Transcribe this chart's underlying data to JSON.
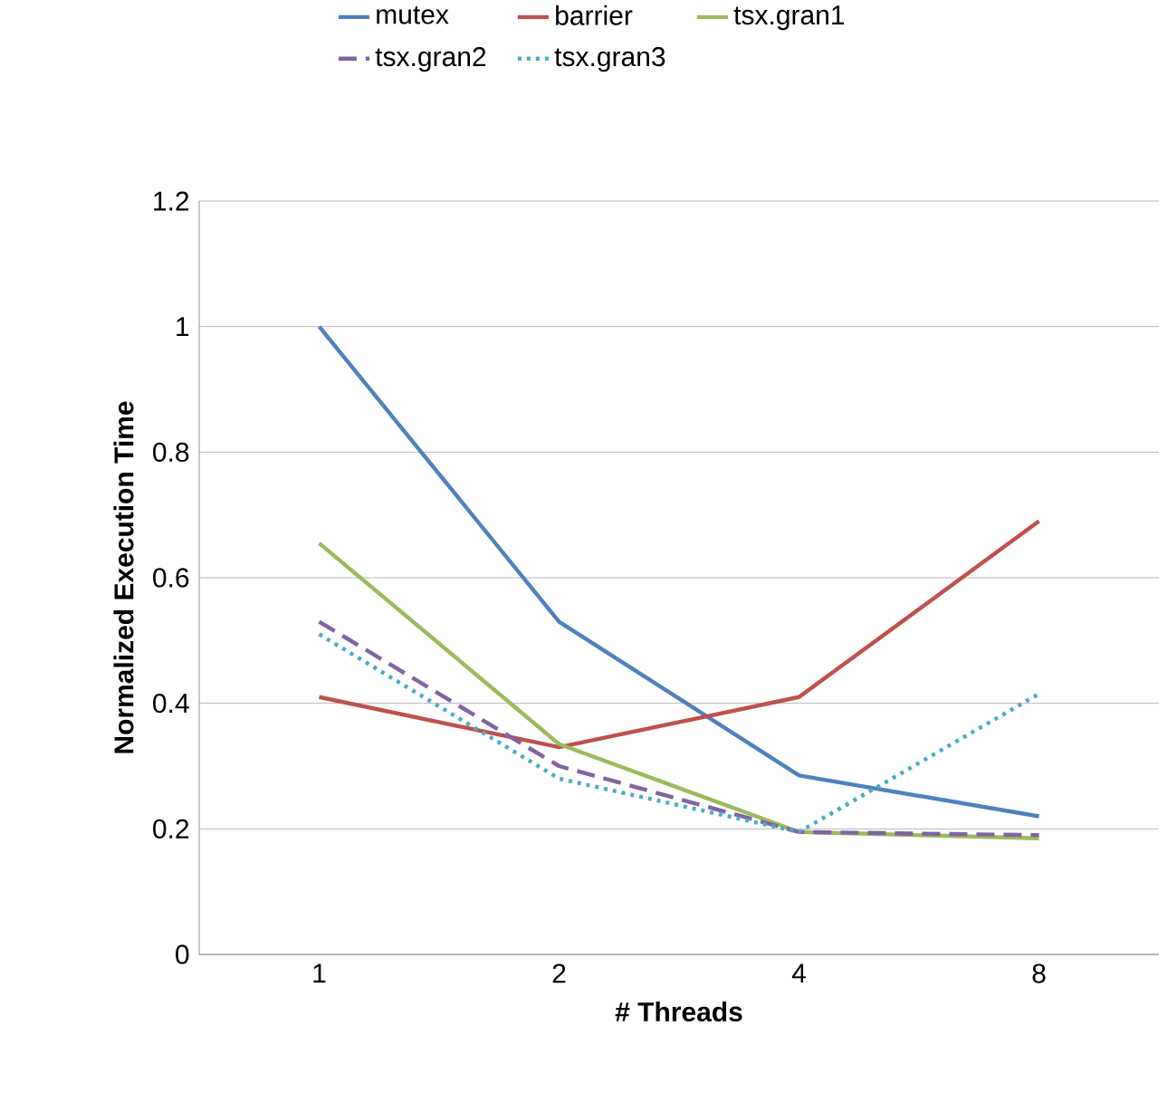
{
  "chart_data": {
    "type": "line",
    "xlabel": "# Threads",
    "ylabel": "Normalized Execution Time",
    "categories": [
      "1",
      "2",
      "4",
      "8"
    ],
    "series": [
      {
        "name": "mutex",
        "color": "#4f81bd",
        "line_style": "solid",
        "values": [
          1.0,
          0.53,
          0.285,
          0.22
        ]
      },
      {
        "name": "barrier",
        "color": "#c0504d",
        "line_style": "solid",
        "values": [
          0.41,
          0.33,
          0.41,
          0.69
        ]
      },
      {
        "name": "tsx.gran1",
        "color": "#9bbb59",
        "line_style": "solid",
        "values": [
          0.655,
          0.335,
          0.195,
          0.185
        ]
      },
      {
        "name": "tsx.gran2",
        "color": "#8064a2",
        "line_style": "dashed",
        "values": [
          0.53,
          0.3,
          0.195,
          0.19
        ]
      },
      {
        "name": "tsx.gran3",
        "color": "#4bacc6",
        "line_style": "dotted",
        "values": [
          0.51,
          0.28,
          0.195,
          0.415
        ]
      }
    ],
    "ylim": [
      0,
      1.2
    ],
    "yticks": [
      0,
      0.2,
      0.4,
      0.6,
      0.8,
      1,
      1.2
    ],
    "grid": "y",
    "legend": "top"
  }
}
